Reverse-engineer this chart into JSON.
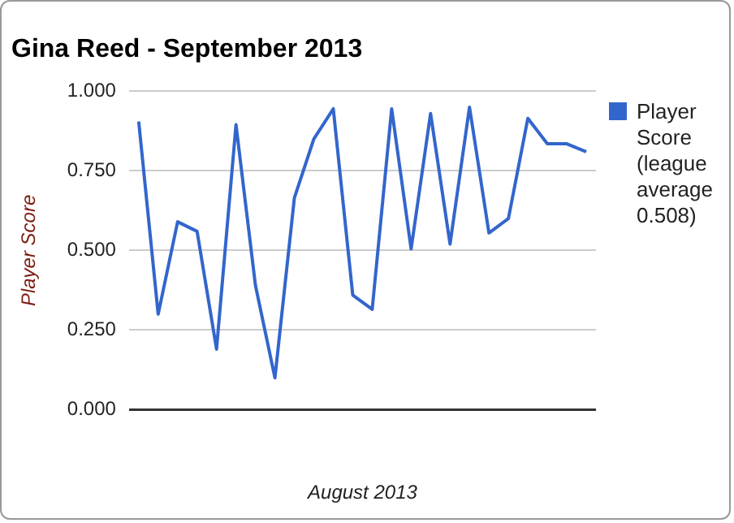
{
  "chart_data": {
    "type": "line",
    "title": "Gina Reed - September 2013",
    "xlabel": "August 2013",
    "ylabel": "Player Score",
    "categories": [
      null,
      null,
      null,
      null,
      null,
      null,
      null,
      null,
      null,
      null,
      null,
      null,
      null,
      null,
      null,
      null,
      null,
      null,
      null,
      null,
      null,
      null,
      null,
      null
    ],
    "series": [
      {
        "name": "Player Score (league average 0.508)",
        "color": "#3366cc",
        "values": [
          0.905,
          0.3,
          0.59,
          0.56,
          0.19,
          0.895,
          0.39,
          0.1,
          0.665,
          0.85,
          0.945,
          0.36,
          0.315,
          0.945,
          0.505,
          0.93,
          0.52,
          0.95,
          0.555,
          0.6,
          0.915,
          0.835,
          0.835,
          0.81
        ]
      }
    ],
    "ylim": [
      0,
      1
    ],
    "yticks": [
      {
        "value": 0,
        "label": "0.000"
      },
      {
        "value": 0.25,
        "label": "0.250"
      },
      {
        "value": 0.5,
        "label": "0.500"
      },
      {
        "value": 0.75,
        "label": "0.750"
      },
      {
        "value": 1,
        "label": "1.000"
      }
    ],
    "grid": "y",
    "legend": "right",
    "marker": "none",
    "line_style": "solid"
  }
}
